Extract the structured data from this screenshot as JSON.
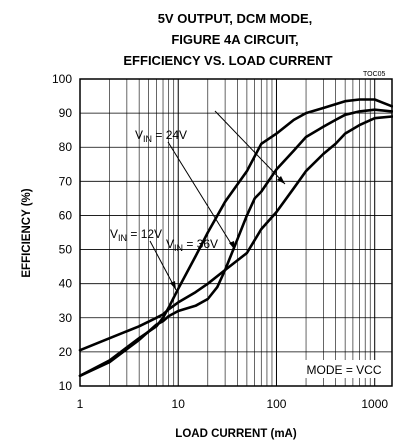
{
  "chart_data": {
    "type": "line",
    "title_lines": [
      "5V OUTPUT, DCM MODE,",
      "FIGURE 4A CIRCUIT,",
      "EFFICIENCY VS. LOAD CURRENT"
    ],
    "figure_code": "TOC05",
    "xlabel": "LOAD CURRENT (mA)",
    "ylabel": "EFFICIENCY (%)",
    "x_scale": "log",
    "xlim": [
      1,
      1500
    ],
    "ylim": [
      10,
      100
    ],
    "x_ticks": [
      1,
      10,
      100,
      1000
    ],
    "x_tick_labels": [
      "1",
      "10",
      "100",
      "1000"
    ],
    "y_ticks": [
      10,
      20,
      30,
      40,
      50,
      60,
      70,
      80,
      90,
      100
    ],
    "y_tick_labels": [
      "10",
      "20",
      "30",
      "40",
      "50",
      "60",
      "70",
      "80",
      "90",
      "100"
    ],
    "grid": true,
    "series": [
      {
        "name": "V_IN = 12V",
        "label_main": "V",
        "label_sub": "IN",
        "label_rest": " = 12V",
        "x": [
          1,
          2,
          4,
          6,
          7,
          8,
          10,
          15,
          20,
          30,
          50,
          70,
          100,
          150,
          200,
          300,
          400,
          500,
          700,
          1000,
          1500
        ],
        "y": [
          20.5,
          24,
          27.5,
          30,
          31,
          32.5,
          34.5,
          37.5,
          40,
          44,
          49,
          56,
          61,
          68,
          73,
          78,
          81,
          84,
          86.5,
          88.5,
          89
        ]
      },
      {
        "name": "V_IN = 24V",
        "label_main": "V",
        "label_sub": "IN",
        "label_rest": " = 24V",
        "x": [
          1,
          2,
          4,
          6,
          7,
          8,
          10,
          15,
          20,
          25,
          30,
          40,
          50,
          60,
          70,
          100,
          150,
          200,
          300,
          400,
          500,
          700,
          1000,
          1500
        ],
        "y": [
          13,
          17,
          23.5,
          28,
          29,
          30.5,
          32,
          33.5,
          35.5,
          39,
          44,
          53,
          60,
          65,
          67,
          73.5,
          79,
          83,
          86,
          88,
          89.5,
          90.5,
          91,
          90.5
        ]
      },
      {
        "name": "V_IN = 36V",
        "label_main": "V",
        "label_sub": "IN",
        "label_rest": " = 36V",
        "x": [
          1,
          2,
          4,
          6,
          7,
          8,
          10,
          15,
          20,
          30,
          50,
          70,
          100,
          150,
          200,
          300,
          500,
          700,
          1000,
          1500
        ],
        "y": [
          13,
          17.5,
          24,
          27.5,
          30,
          33,
          38.5,
          48,
          55,
          64,
          73,
          81,
          84,
          88,
          90,
          91.5,
          93.5,
          94,
          94,
          92
        ]
      }
    ],
    "annotations": [
      {
        "text": "MODE = VCC"
      }
    ]
  }
}
